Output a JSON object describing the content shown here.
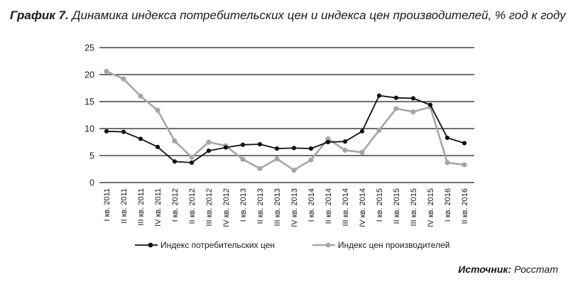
{
  "title": {
    "lead": "График 7.",
    "text": "Динамика индекса потребительских цен и индекса цен производителей, % год к году"
  },
  "source": {
    "lead": "Источник:",
    "text": "Росстат"
  },
  "colors": {
    "cpi": "#111111",
    "ppi": "#a6a6a6",
    "grid": "#1a1a1a"
  },
  "chart_data": {
    "type": "line",
    "title": "Динамика индекса потребительских цен и индекса цен производителей, % год к году",
    "xlabel": "",
    "ylabel": "",
    "ylim": [
      0,
      25
    ],
    "yticks": [
      0,
      5,
      10,
      15,
      20,
      25
    ],
    "grid": "horizontal",
    "legend_position": "bottom",
    "categories": [
      "I кв. 2011",
      "II кв. 2011",
      "III кв. 2011",
      "IV кв. 2011",
      "I кв. 2012",
      "II кв. 2012",
      "III кв. 2012",
      "IV кв. 2012",
      "I кв. 2013",
      "II кв. 2013",
      "III кв. 2013",
      "IV кв. 2013",
      "I кв. 2014",
      "II кв. 2014",
      "III кв. 2014",
      "IV кв. 2014",
      "I кв. 2015",
      "II кв. 2015",
      "III кв. 2015",
      "IV кв. 2015",
      "I кв. 2016",
      "II кв. 2016"
    ],
    "series": [
      {
        "name": "Индекс потребительских цен",
        "color": "#111111",
        "values": [
          9.5,
          9.4,
          8.1,
          6.6,
          3.9,
          3.7,
          5.9,
          6.5,
          7.0,
          7.1,
          6.3,
          6.4,
          6.3,
          7.5,
          7.6,
          9.5,
          16.1,
          15.7,
          15.6,
          14.4,
          8.3,
          7.3
        ]
      },
      {
        "name": "Индекс цен производителей",
        "color": "#a6a6a6",
        "values": [
          20.6,
          19.2,
          16.0,
          13.4,
          7.7,
          4.7,
          7.5,
          6.8,
          4.3,
          2.6,
          4.4,
          2.3,
          4.2,
          8.1,
          6.0,
          5.6,
          9.7,
          13.7,
          13.1,
          14.0,
          3.7,
          3.3
        ]
      }
    ]
  }
}
